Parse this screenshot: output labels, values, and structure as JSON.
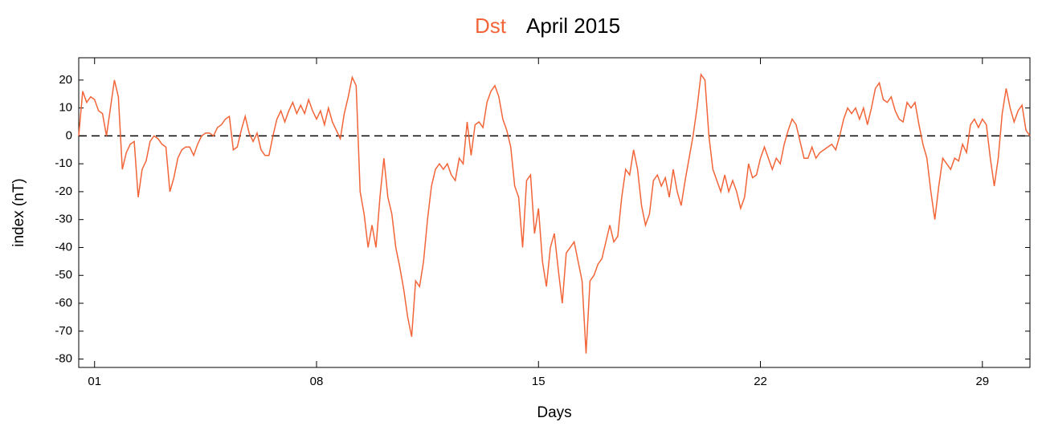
{
  "chart_data": {
    "type": "line",
    "title": "April 2015",
    "xlabel": "Days",
    "ylabel": "index (nT)",
    "xlim": [
      1,
      31
    ],
    "xticks": [
      {
        "value": 1.5,
        "label": "01"
      },
      {
        "value": 8.5,
        "label": "08"
      },
      {
        "value": 15.5,
        "label": "15"
      },
      {
        "value": 22.5,
        "label": "22"
      },
      {
        "value": 29.5,
        "label": "29"
      }
    ],
    "ylim": [
      -83,
      28
    ],
    "yticks": [
      -80,
      -70,
      -60,
      -50,
      -40,
      -30,
      -20,
      -10,
      0,
      10,
      20
    ],
    "reference_line": 0,
    "x": [
      1,
      1.125,
      1.25,
      1.375,
      1.5,
      1.625,
      1.75,
      1.875,
      2,
      2.125,
      2.25,
      2.375,
      2.5,
      2.625,
      2.75,
      2.875,
      3,
      3.125,
      3.25,
      3.375,
      3.5,
      3.625,
      3.75,
      3.875,
      4,
      4.125,
      4.25,
      4.375,
      4.5,
      4.625,
      4.75,
      4.875,
      5,
      5.125,
      5.25,
      5.375,
      5.5,
      5.625,
      5.75,
      5.875,
      6,
      6.125,
      6.25,
      6.375,
      6.5,
      6.625,
      6.75,
      6.875,
      7,
      7.125,
      7.25,
      7.375,
      7.5,
      7.625,
      7.75,
      7.875,
      8,
      8.125,
      8.25,
      8.375,
      8.5,
      8.625,
      8.75,
      8.875,
      9,
      9.125,
      9.25,
      9.375,
      9.5,
      9.625,
      9.75,
      9.875,
      10,
      10.125,
      10.25,
      10.375,
      10.5,
      10.625,
      10.75,
      10.875,
      11,
      11.125,
      11.25,
      11.375,
      11.5,
      11.625,
      11.75,
      11.875,
      12,
      12.125,
      12.25,
      12.375,
      12.5,
      12.625,
      12.75,
      12.875,
      13,
      13.125,
      13.25,
      13.375,
      13.5,
      13.625,
      13.75,
      13.875,
      14,
      14.125,
      14.25,
      14.375,
      14.5,
      14.625,
      14.75,
      14.875,
      15,
      15.125,
      15.25,
      15.375,
      15.5,
      15.625,
      15.75,
      15.875,
      16,
      16.125,
      16.25,
      16.375,
      16.5,
      16.625,
      16.75,
      16.875,
      17,
      17.125,
      17.25,
      17.375,
      17.5,
      17.625,
      17.75,
      17.875,
      18,
      18.125,
      18.25,
      18.375,
      18.5,
      18.625,
      18.75,
      18.875,
      19,
      19.125,
      19.25,
      19.375,
      19.5,
      19.625,
      19.75,
      19.875,
      20,
      20.125,
      20.25,
      20.375,
      20.5,
      20.625,
      20.75,
      20.875,
      21,
      21.125,
      21.25,
      21.375,
      21.5,
      21.625,
      21.75,
      21.875,
      22,
      22.125,
      22.25,
      22.375,
      22.5,
      22.625,
      22.75,
      22.875,
      23,
      23.125,
      23.25,
      23.375,
      23.5,
      23.625,
      23.75,
      23.875,
      24,
      24.125,
      24.25,
      24.375,
      24.5,
      24.625,
      24.75,
      24.875,
      25,
      25.125,
      25.25,
      25.375,
      25.5,
      25.625,
      25.75,
      25.875,
      26,
      26.125,
      26.25,
      26.375,
      26.5,
      26.625,
      26.75,
      26.875,
      27,
      27.125,
      27.25,
      27.375,
      27.5,
      27.625,
      27.75,
      27.875,
      28,
      28.125,
      28.25,
      28.375,
      28.5,
      28.625,
      28.75,
      28.875,
      29,
      29.125,
      29.25,
      29.375,
      29.5,
      29.625,
      29.75,
      29.875,
      30,
      30.125,
      30.25,
      30.375,
      30.5,
      30.625,
      30.75,
      30.875,
      31
    ],
    "series": [
      {
        "name": "Dst",
        "color": "#f26539",
        "values": [
          0,
          16,
          12,
          14,
          13,
          9,
          8,
          0,
          10,
          20,
          14,
          -12,
          -6,
          -3,
          -2,
          -22,
          -12,
          -9,
          -2,
          0,
          -1,
          -3,
          -4,
          -20,
          -15,
          -8,
          -5,
          -4,
          -4,
          -7,
          -3,
          0,
          1,
          1,
          0,
          3,
          4,
          6,
          7,
          -5,
          -4,
          2,
          7,
          1,
          -2,
          1,
          -5,
          -7,
          -7,
          0,
          6,
          9,
          5,
          9,
          12,
          8,
          11,
          8,
          13,
          9,
          6,
          9,
          4,
          10,
          5,
          2,
          -1,
          8,
          14,
          21,
          18,
          -20,
          -28,
          -40,
          -32,
          -40,
          -22,
          -8,
          -22,
          -28,
          -40,
          -47,
          -55,
          -65,
          -72,
          -52,
          -54,
          -45,
          -30,
          -18,
          -12,
          -10,
          -12,
          -10,
          -14,
          -16,
          -8,
          -10,
          5,
          -7,
          4,
          5,
          3,
          12,
          16,
          18,
          14,
          6,
          2,
          -4,
          -18,
          -22,
          -40,
          -16,
          -14,
          -35,
          -26,
          -45,
          -54,
          -40,
          -35,
          -48,
          -60,
          -42,
          -40,
          -38,
          -45,
          -52,
          -78,
          -52,
          -50,
          -46,
          -44,
          -38,
          -32,
          -38,
          -36,
          -22,
          -12,
          -14,
          -5,
          -12,
          -25,
          -32,
          -28,
          -16,
          -14,
          -18,
          -15,
          -22,
          -12,
          -20,
          -25,
          -16,
          -8,
          0,
          10,
          22,
          20,
          0,
          -12,
          -16,
          -20,
          -14,
          -20,
          -16,
          -20,
          -26,
          -22,
          -10,
          -15,
          -14,
          -8,
          -4,
          -8,
          -12,
          -8,
          -10,
          -3,
          2,
          6,
          4,
          -2,
          -8,
          -8,
          -4,
          -8,
          -6,
          -5,
          -4,
          -3,
          -5,
          0,
          6,
          10,
          8,
          10,
          6,
          10,
          4,
          10,
          17,
          19,
          13,
          12,
          14,
          9,
          6,
          5,
          12,
          10,
          12,
          4,
          -3,
          -8,
          -20,
          -30,
          -18,
          -8,
          -10,
          -12,
          -8,
          -9,
          -3,
          -6,
          4,
          6,
          3,
          6,
          4,
          -8,
          -18,
          -8,
          8,
          17,
          10,
          5,
          9,
          11,
          2,
          0
        ]
      }
    ]
  }
}
